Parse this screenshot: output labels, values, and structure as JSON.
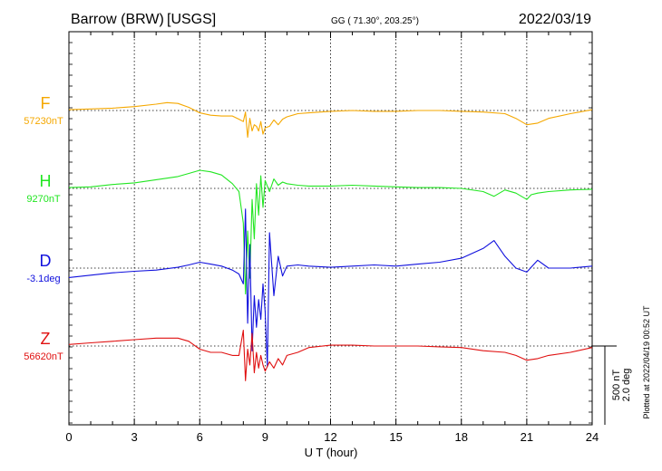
{
  "header": {
    "station": "Barrow (BRW)",
    "source": "[USGS]",
    "coords": "GG ( 71.30°, 203.25°)",
    "date": "2022/03/19"
  },
  "footer": {
    "plotted": "Plotted at 2022/04/19 00:52 UT"
  },
  "chart_data": {
    "type": "line",
    "xlabel": "U T (hour)",
    "ylabel": "",
    "xlim": [
      0,
      24
    ],
    "xticks": [
      0,
      3,
      6,
      9,
      12,
      15,
      18,
      21,
      24
    ],
    "grid": true,
    "scale_bar": {
      "value_nT": 500,
      "value_deg": 2.0,
      "label_nT": "500 nT",
      "label_deg": "2.0 deg"
    },
    "series": [
      {
        "name": "F",
        "baseline_label": "57230nT",
        "baseline": 57230,
        "unit": "nT",
        "color": "#f5a800",
        "x": [
          0,
          1,
          2,
          3,
          4,
          4.5,
          5,
          5.5,
          6,
          6.5,
          7,
          7.5,
          7.8,
          8.0,
          8.1,
          8.2,
          8.3,
          8.4,
          8.5,
          8.6,
          8.7,
          8.8,
          8.9,
          9.0,
          9.2,
          9.4,
          9.6,
          9.8,
          10.0,
          10.5,
          11,
          12,
          13,
          14,
          15,
          16,
          17,
          18,
          19,
          20,
          20.5,
          21,
          21.5,
          22,
          23,
          24
        ],
        "y": [
          57235,
          57240,
          57245,
          57255,
          57270,
          57280,
          57275,
          57250,
          57215,
          57200,
          57195,
          57195,
          57175,
          57160,
          57220,
          57060,
          57180,
          57100,
          57140,
          57130,
          57100,
          57160,
          57080,
          57120,
          57130,
          57170,
          57140,
          57175,
          57190,
          57210,
          57215,
          57225,
          57230,
          57225,
          57225,
          57230,
          57230,
          57225,
          57220,
          57210,
          57180,
          57140,
          57150,
          57180,
          57210,
          57235
        ]
      },
      {
        "name": "H",
        "baseline_label": "9270nT",
        "baseline": 9270,
        "unit": "nT",
        "color": "#22e622",
        "x": [
          0,
          1,
          2,
          3,
          4,
          5,
          5.5,
          6,
          6.5,
          7,
          7.5,
          7.8,
          8.0,
          8.1,
          8.2,
          8.3,
          8.4,
          8.5,
          8.6,
          8.7,
          8.8,
          8.9,
          9.0,
          9.2,
          9.4,
          9.6,
          9.8,
          10.0,
          10.5,
          11,
          12,
          13,
          14,
          15,
          16,
          17,
          18,
          19,
          19.5,
          20,
          20.5,
          21,
          21.2,
          21.5,
          22,
          23,
          24
        ],
        "y": [
          9275,
          9280,
          9295,
          9305,
          9325,
          9345,
          9365,
          9385,
          9375,
          9355,
          9300,
          9250,
          9050,
          8600,
          9000,
          8700,
          9200,
          8950,
          9300,
          9100,
          9350,
          9150,
          9320,
          9250,
          9330,
          9290,
          9310,
          9300,
          9290,
          9285,
          9285,
          9290,
          9285,
          9280,
          9275,
          9275,
          9270,
          9250,
          9220,
          9260,
          9240,
          9200,
          9230,
          9240,
          9250,
          9260,
          9265
        ]
      },
      {
        "name": "D",
        "baseline_label": "-3.1deg",
        "baseline": -3.1,
        "unit": "deg",
        "color": "#1010dd",
        "x": [
          0,
          1,
          2,
          3,
          4,
          5,
          5.5,
          6,
          6.5,
          7,
          7.5,
          7.8,
          8.0,
          8.1,
          8.2,
          8.3,
          8.4,
          8.5,
          8.6,
          8.7,
          8.8,
          8.9,
          9.0,
          9.1,
          9.2,
          9.4,
          9.6,
          9.8,
          10.0,
          10.5,
          11,
          12,
          13,
          14,
          15,
          16,
          17,
          18,
          19,
          19.5,
          20,
          20.5,
          21,
          21.5,
          22,
          23,
          24
        ],
        "y": [
          -3.34,
          -3.28,
          -3.22,
          -3.18,
          -3.15,
          -3.08,
          -3.02,
          -2.95,
          -3.0,
          -3.05,
          -3.15,
          -3.25,
          -3.5,
          -1.6,
          -4.5,
          -2.5,
          -5.2,
          -3.8,
          -4.6,
          -3.9,
          -4.4,
          -3.5,
          -4.2,
          -5.6,
          -2.2,
          -3.8,
          -2.8,
          -3.3,
          -3.05,
          -3.02,
          -3.05,
          -3.08,
          -3.05,
          -3.02,
          -3.05,
          -3.0,
          -2.95,
          -2.85,
          -2.6,
          -2.4,
          -2.8,
          -3.1,
          -3.2,
          -2.9,
          -3.1,
          -3.1,
          -3.05
        ]
      },
      {
        "name": "Z",
        "baseline_label": "56620nT",
        "baseline": 56620,
        "unit": "nT",
        "color": "#e01010",
        "x": [
          0,
          1,
          2,
          3,
          4,
          5,
          5.5,
          6,
          6.5,
          7,
          7.5,
          7.8,
          8.0,
          8.1,
          8.2,
          8.3,
          8.4,
          8.5,
          8.6,
          8.7,
          8.8,
          8.9,
          9.0,
          9.2,
          9.4,
          9.6,
          9.8,
          10.0,
          10.5,
          11,
          12,
          13,
          14,
          15,
          16,
          17,
          18,
          19,
          20,
          20.5,
          21,
          21.5,
          22,
          23,
          24
        ],
        "y": [
          56630,
          56640,
          56650,
          56660,
          56670,
          56670,
          56650,
          56600,
          56580,
          56580,
          56560,
          56560,
          56720,
          56400,
          56600,
          56500,
          56700,
          56450,
          56580,
          56480,
          56560,
          56500,
          56460,
          56520,
          56480,
          56540,
          56500,
          56560,
          56580,
          56610,
          56625,
          56625,
          56620,
          56620,
          56620,
          56615,
          56610,
          56590,
          56580,
          56560,
          56530,
          56540,
          56560,
          56580,
          56610
        ]
      }
    ]
  }
}
